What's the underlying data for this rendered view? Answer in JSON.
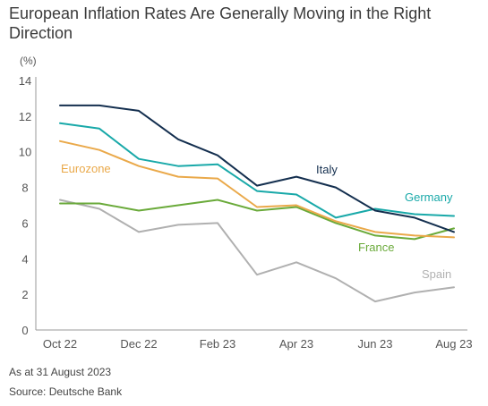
{
  "chart_data": {
    "type": "line",
    "title": "European Inflation Rates Are Generally Moving in the Right Direction",
    "ylabel": "(%)",
    "ylim": [
      0,
      14
    ],
    "yticks": [
      0,
      2,
      4,
      6,
      8,
      10,
      12,
      14
    ],
    "x": [
      "Oct 22",
      "Nov 22",
      "Dec 22",
      "Jan 23",
      "Feb 23",
      "Mar 23",
      "Apr 23",
      "May 23",
      "Jun 23",
      "Jul 23",
      "Aug 23"
    ],
    "xtick_labels": [
      "Oct 22",
      "Dec 22",
      "Feb 23",
      "Apr 23",
      "Jun 23",
      "Aug 23"
    ],
    "grid": false,
    "legend": "inline labels",
    "series": [
      {
        "name": "Italy",
        "color": "#142f4f",
        "values": [
          12.6,
          12.6,
          12.3,
          10.7,
          9.8,
          8.1,
          8.6,
          8.0,
          6.7,
          6.3,
          5.5
        ]
      },
      {
        "name": "Germany",
        "color": "#19a9a9",
        "values": [
          11.6,
          11.3,
          9.6,
          9.2,
          9.3,
          7.8,
          7.6,
          6.3,
          6.8,
          6.5,
          6.4
        ]
      },
      {
        "name": "Eurozone",
        "color": "#eaa94a",
        "values": [
          10.6,
          10.1,
          9.2,
          8.6,
          8.5,
          6.9,
          7.0,
          6.1,
          5.5,
          5.3,
          5.2
        ]
      },
      {
        "name": "France",
        "color": "#6aaa3a",
        "values": [
          7.1,
          7.1,
          6.7,
          7.0,
          7.3,
          6.7,
          6.9,
          6.0,
          5.3,
          5.1,
          5.7
        ]
      },
      {
        "name": "Spain",
        "color": "#b0b0b0",
        "values": [
          7.3,
          6.8,
          5.5,
          5.9,
          6.0,
          3.1,
          3.8,
          2.9,
          1.6,
          2.1,
          2.4
        ]
      }
    ]
  },
  "footer": {
    "as_at": "As at 31 August 2023",
    "source": "Source: Deutsche Bank"
  }
}
